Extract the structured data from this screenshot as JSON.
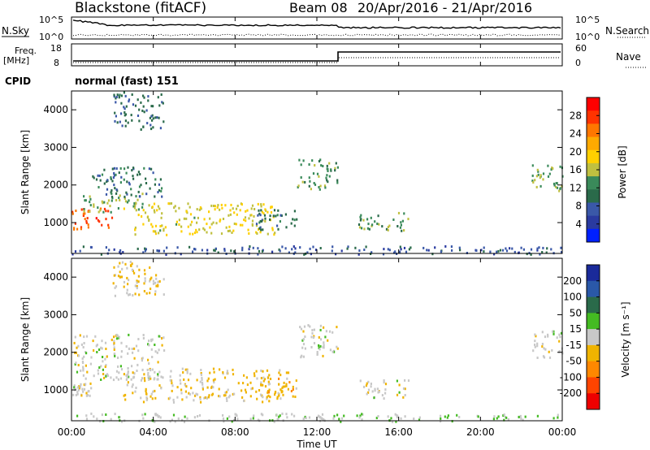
{
  "header": {
    "station": "Blackstone (fitACF)",
    "beam": "Beam 08",
    "date_range": "20/Apr/2016 - 21/Apr/2016"
  },
  "top_panels": {
    "nsky_label": "N.Sky",
    "nsky_ticks": [
      "10^5",
      "10^0"
    ],
    "nsearch_label": "N.Search",
    "nsearch_ticks": [
      "10^5",
      "10^0"
    ],
    "freq_label_1": "Freq.",
    "freq_label_2": "[MHz]",
    "freq_ticks": [
      "18",
      "8"
    ],
    "nave_label": "Nave",
    "nave_ticks": [
      "60",
      "0"
    ],
    "cpid_label": "CPID",
    "cpid_value": "normal (fast) 151"
  },
  "power_panel": {
    "ylabel": "Slant Range [km]",
    "yticks": [
      "1000",
      "2000",
      "3000",
      "4000"
    ],
    "colorbar_title": "Power [dB]",
    "colorbar_ticks": [
      "28",
      "24",
      "20",
      "16",
      "12",
      "8",
      "4"
    ],
    "colorbar_colors": [
      "#ff0000",
      "#ff3300",
      "#ff7700",
      "#ffaa00",
      "#ffd000",
      "#c0c040",
      "#3a8a5a",
      "#2a6a4a",
      "#3a58a8",
      "#2a3aa0",
      "#0020ff"
    ]
  },
  "velocity_panel": {
    "ylabel": "Slant Range [km]",
    "yticks": [
      "1000",
      "2000",
      "3000",
      "4000"
    ],
    "colorbar_title": "Velocity [m s⁻¹]",
    "colorbar_ticks": [
      "200",
      "100",
      "50",
      "15",
      "-15",
      "-50",
      "-100",
      "-200"
    ],
    "colorbar_colors": [
      "#1a2a9a",
      "#2a58a8",
      "#2a6a4a",
      "#44bb22",
      "#c8c8c8",
      "#f0b400",
      "#ff8800",
      "#ff4400",
      "#ee0000"
    ]
  },
  "x_axis": {
    "label": "Time UT",
    "ticks": [
      "00:00",
      "04:00",
      "08:00",
      "12:00",
      "16:00",
      "20:00",
      "00:00"
    ]
  },
  "chart_data": [
    {
      "type": "heatmap",
      "title": "Power [dB]",
      "xlabel": "Time UT",
      "ylabel": "Slant Range [km]",
      "xlim": [
        0,
        24
      ],
      "ylim": [
        180,
        4500
      ],
      "zlim": [
        0,
        30
      ],
      "features": [
        {
          "t": [
            0.0,
            2.0
          ],
          "r": [
            850,
            1450
          ],
          "z": 26
        },
        {
          "t": [
            0.5,
            3.5
          ],
          "r": [
            1300,
            1800
          ],
          "z": 14
        },
        {
          "t": [
            1.0,
            4.5
          ],
          "r": [
            1700,
            2500
          ],
          "z": 9
        },
        {
          "t": [
            2.0,
            4.5
          ],
          "r": [
            3500,
            4500
          ],
          "z": 8
        },
        {
          "t": [
            3.0,
            10.0
          ],
          "r": [
            700,
            1550
          ],
          "z": 16
        },
        {
          "t": [
            9.0,
            11.0
          ],
          "r": [
            800,
            1400
          ],
          "z": 9
        },
        {
          "t": [
            11.0,
            13.0
          ],
          "r": [
            1900,
            2700
          ],
          "z": 12
        },
        {
          "t": [
            14.0,
            16.5
          ],
          "r": [
            800,
            1300
          ],
          "z": 12
        },
        {
          "t": [
            22.5,
            24.0
          ],
          "r": [
            1800,
            2600
          ],
          "z": 13
        },
        {
          "t": [
            0.0,
            24.0
          ],
          "r": [
            180,
            400
          ],
          "z": 6
        }
      ]
    },
    {
      "type": "heatmap",
      "title": "Velocity [m s⁻¹]",
      "xlabel": "Time UT",
      "ylabel": "Slant Range [km]",
      "xlim": [
        0,
        24
      ],
      "ylim": [
        180,
        4500
      ],
      "zlim": [
        -250,
        250
      ],
      "features": [
        {
          "t": [
            0.0,
            1.0
          ],
          "r": [
            850,
            1200
          ],
          "z": -5
        },
        {
          "t": [
            0.0,
            4.5
          ],
          "r": [
            1300,
            2500
          ],
          "z": 0
        },
        {
          "t": [
            2.0,
            4.5
          ],
          "r": [
            3500,
            4500
          ],
          "z": -40
        },
        {
          "t": [
            2.5,
            10.5
          ],
          "r": [
            700,
            1600
          ],
          "z": -35
        },
        {
          "t": [
            9.5,
            11.0
          ],
          "r": [
            800,
            1500
          ],
          "z": -70
        },
        {
          "t": [
            11.0,
            13.0
          ],
          "r": [
            1900,
            2800
          ],
          "z": 0
        },
        {
          "t": [
            14.0,
            16.5
          ],
          "r": [
            800,
            1300
          ],
          "z": 0
        },
        {
          "t": [
            22.5,
            24.0
          ],
          "r": [
            1800,
            2600
          ],
          "z": 0
        },
        {
          "t": [
            0.0,
            24.0
          ],
          "r": [
            180,
            400
          ],
          "z": 20
        }
      ]
    }
  ]
}
